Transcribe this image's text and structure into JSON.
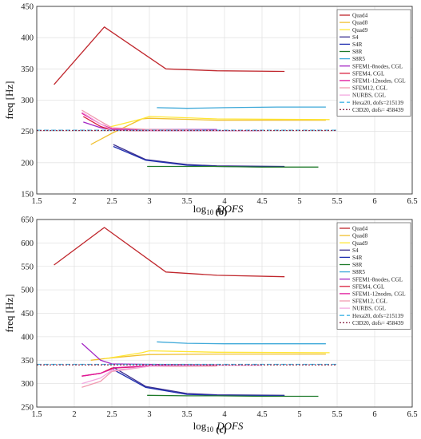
{
  "chart_data": [
    {
      "type": "line",
      "panel_label": "(b)",
      "xlabel_base": "log",
      "xlabel_sub": "10",
      "xlabel_var": "DOFS",
      "ylabel": "freq [Hz]",
      "xlim": [
        1.5,
        6.5
      ],
      "ylim": [
        150,
        450
      ],
      "xticks": [
        1.5,
        2,
        2.5,
        3,
        3.5,
        4,
        4.5,
        5,
        5.5,
        6,
        6.5
      ],
      "xtick_labels": [
        "1.5",
        "2",
        "2.5",
        "3",
        "3.5",
        "4",
        "4.5",
        "5",
        "5.5",
        "6",
        "6.5"
      ],
      "yticks": [
        150,
        200,
        250,
        300,
        350,
        400,
        450
      ],
      "ytick_labels": [
        "150",
        "200",
        "250",
        "300",
        "350",
        "400",
        "450"
      ],
      "grid": true,
      "legend_position": "right",
      "series": [
        {
          "name": "Quad4",
          "color": "#c0272d",
          "x": [
            1.73,
            2.4,
            3.22,
            3.9,
            4.8
          ],
          "y": [
            325,
            417,
            350,
            347,
            346
          ]
        },
        {
          "name": "Quad8",
          "color": "#f0c030",
          "x": [
            2.22,
            2.5,
            2.9,
            3.0,
            3.9,
            5.35
          ],
          "y": [
            229,
            247,
            270,
            271,
            268,
            268
          ]
        },
        {
          "name": "Quad9",
          "color": "#ffe633",
          "x": [
            2.4,
            2.9,
            3.0,
            3.9,
            5.4
          ],
          "y": [
            255,
            270,
            274,
            270,
            269
          ]
        },
        {
          "name": "S4",
          "color": "#3b2f8f",
          "x": [
            2.52,
            2.95,
            3.5,
            3.9,
            4.8
          ],
          "y": [
            229,
            205,
            197,
            195,
            194
          ]
        },
        {
          "name": "S4R",
          "color": "#1f2fb0",
          "x": [
            2.52,
            2.95,
            3.5,
            3.9,
            4.8
          ],
          "y": [
            226,
            204,
            196,
            194,
            193
          ]
        },
        {
          "name": "S8R",
          "color": "#1e7a2a",
          "x": [
            2.97,
            3.5,
            3.9,
            4.5,
            5.25
          ],
          "y": [
            194,
            194,
            194,
            193,
            193
          ]
        },
        {
          "name": "S8R5",
          "color": "#3fa9d9",
          "x": [
            3.1,
            3.5,
            4.0,
            4.7,
            5.35
          ],
          "y": [
            288,
            287,
            288,
            289,
            289
          ]
        },
        {
          "name": "SFEM1-8nodes, CGL",
          "color": "#a326c4",
          "x": [
            2.12,
            2.35,
            2.5,
            3.0,
            3.9
          ],
          "y": [
            265,
            256,
            253,
            253,
            253
          ]
        },
        {
          "name": "SFEM4, CGL",
          "color": "#d91f3d",
          "x": [
            2.12,
            2.35,
            2.5,
            3.0,
            3.9
          ],
          "y": [
            274,
            258,
            252,
            251,
            251
          ]
        },
        {
          "name": "SFEM1-12nodes, CGL",
          "color": "#e0169c",
          "x": [
            2.1,
            2.35,
            2.5,
            3.0,
            3.9
          ],
          "y": [
            279,
            262,
            254,
            252,
            251
          ]
        },
        {
          "name": "SFEM12, CGL",
          "color": "#f09ab0",
          "x": [
            2.1,
            2.35,
            2.5,
            3.0,
            3.9
          ],
          "y": [
            284,
            266,
            256,
            253,
            252
          ]
        },
        {
          "name": "NURBS, CGL",
          "color": "#f2a8e0",
          "x": [
            2.1,
            2.35,
            2.5,
            3.0,
            3.9,
            4.5
          ],
          "y": [
            281,
            262,
            252,
            251,
            251,
            251
          ]
        },
        {
          "name": "Hexa20, dofs=215139",
          "color": "#45b6e6",
          "dash": "6,3",
          "x": [
            1.5,
            5.5
          ],
          "y": [
            252,
            252
          ]
        },
        {
          "name": "C3D20, dofs= 458439",
          "color": "#8a2a4a",
          "dash": "2,2",
          "x": [
            1.5,
            5.5
          ],
          "y": [
            251.5,
            251.5
          ]
        }
      ]
    },
    {
      "type": "line",
      "panel_label": "(c)",
      "xlabel_base": "log",
      "xlabel_sub": "10",
      "xlabel_var": "DOFS",
      "ylabel": "freq [Hz]",
      "xlim": [
        1.5,
        6.5
      ],
      "ylim": [
        250,
        650
      ],
      "xticks": [
        1.5,
        2,
        2.5,
        3,
        3.5,
        4,
        4.5,
        5,
        5.5,
        6,
        6.5
      ],
      "xtick_labels": [
        "1.5",
        "2",
        "2.5",
        "3",
        "3.5",
        "4",
        "4.5",
        "5",
        "5.5",
        "6",
        "6.5"
      ],
      "yticks": [
        250,
        300,
        350,
        400,
        450,
        500,
        550,
        600,
        650
      ],
      "ytick_labels": [
        "250",
        "300",
        "350",
        "400",
        "450",
        "500",
        "550",
        "600",
        "650"
      ],
      "grid": true,
      "legend_position": "right",
      "series": [
        {
          "name": "Quad4",
          "color": "#c0272d",
          "x": [
            1.73,
            2.4,
            3.22,
            3.9,
            4.8
          ],
          "y": [
            553,
            633,
            538,
            531,
            528
          ]
        },
        {
          "name": "Quad8",
          "color": "#f0c030",
          "x": [
            2.22,
            2.5,
            2.9,
            3.0,
            3.9,
            5.35
          ],
          "y": [
            350,
            355,
            361,
            362,
            363,
            363
          ]
        },
        {
          "name": "Quad9",
          "color": "#ffe633",
          "x": [
            2.4,
            2.9,
            3.0,
            3.9,
            5.4
          ],
          "y": [
            353,
            366,
            370,
            367,
            366
          ]
        },
        {
          "name": "S4",
          "color": "#3b2f8f",
          "x": [
            2.52,
            2.95,
            3.5,
            3.9,
            4.8
          ],
          "y": [
            335,
            294,
            279,
            276,
            275
          ]
        },
        {
          "name": "S4R",
          "color": "#1f2fb0",
          "x": [
            2.52,
            2.95,
            3.5,
            3.9,
            4.8
          ],
          "y": [
            330,
            292,
            277,
            275,
            274
          ]
        },
        {
          "name": "S8R",
          "color": "#1e7a2a",
          "x": [
            2.97,
            3.5,
            3.9,
            4.5,
            5.25
          ],
          "y": [
            275,
            274,
            274,
            273,
            273
          ]
        },
        {
          "name": "S8R5",
          "color": "#3fa9d9",
          "x": [
            3.1,
            3.5,
            4.0,
            4.7,
            5.35
          ],
          "y": [
            389,
            386,
            385,
            385,
            385
          ]
        },
        {
          "name": "SFEM1-8nodes, CGL",
          "color": "#a326c4",
          "x": [
            2.1,
            2.35,
            2.5,
            3.0,
            3.9
          ],
          "y": [
            386,
            350,
            342,
            341,
            340
          ]
        },
        {
          "name": "SFEM4, CGL",
          "color": "#d91f3d",
          "x": [
            2.1,
            2.35,
            2.5,
            3.0,
            3.9
          ],
          "y": [
            316,
            322,
            333,
            337,
            338
          ]
        },
        {
          "name": "SFEM1-12nodes, CGL",
          "color": "#e0169c",
          "x": [
            2.1,
            2.35,
            2.55,
            3.0,
            3.9
          ],
          "y": [
            316,
            322,
            334,
            338,
            339
          ]
        },
        {
          "name": "SFEM12, CGL",
          "color": "#f09ab0",
          "x": [
            2.1,
            2.35,
            2.5,
            3.0,
            3.9
          ],
          "y": [
            292,
            305,
            326,
            337,
            339
          ]
        },
        {
          "name": "NURBS, CGL",
          "color": "#f2a8e0",
          "x": [
            2.1,
            2.35,
            2.5,
            3.0,
            3.9,
            4.5
          ],
          "y": [
            300,
            312,
            328,
            337,
            339,
            339
          ]
        },
        {
          "name": "Hexa20, dofs=215139",
          "color": "#45b6e6",
          "dash": "6,3",
          "x": [
            1.5,
            5.5
          ],
          "y": [
            341,
            341
          ]
        },
        {
          "name": "C3D20, dofs= 458439",
          "color": "#8a2a4a",
          "dash": "2,2",
          "x": [
            1.5,
            5.5
          ],
          "y": [
            340,
            340
          ]
        }
      ]
    }
  ]
}
